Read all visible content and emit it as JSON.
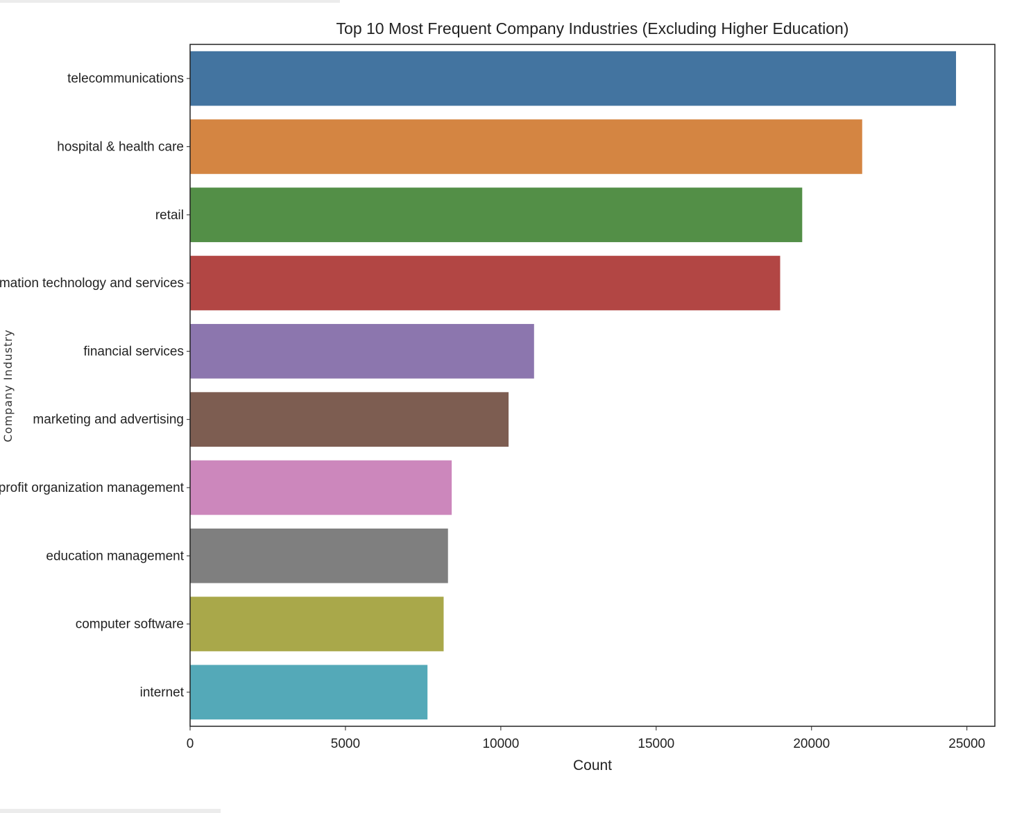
{
  "chart_data": {
    "type": "bar",
    "orientation": "horizontal",
    "title": "Top 10 Most Frequent Company Industries (Excluding Higher Education)",
    "xlabel": "Count",
    "ylabel": "Company Industry",
    "xlim": [
      0,
      25900
    ],
    "xticks": [
      0,
      5000,
      10000,
      15000,
      20000,
      25000
    ],
    "grid": false,
    "categories": [
      "telecommunications",
      "hospital & health care",
      "retail",
      "information technology and services",
      "financial services",
      "marketing and advertising",
      "non-profit organization management",
      "education management",
      "computer software",
      "internet"
    ],
    "values": [
      24650,
      21630,
      19700,
      18990,
      11070,
      10250,
      8420,
      8300,
      8160,
      7640
    ],
    "colors": [
      "#4374a0",
      "#d48542",
      "#538f47",
      "#b24644",
      "#8c76ae",
      "#7d5d51",
      "#cc87bc",
      "#7f7f7f",
      "#a9a84a",
      "#54a9b8"
    ]
  }
}
